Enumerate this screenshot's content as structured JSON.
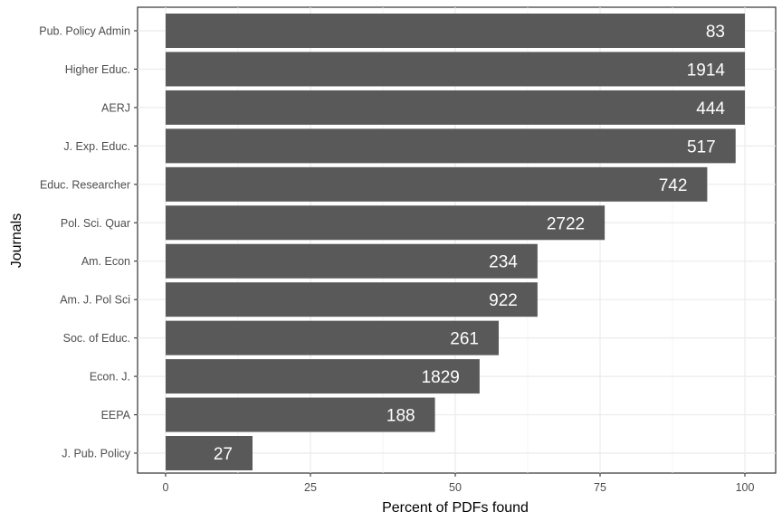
{
  "chart_data": {
    "type": "bar",
    "orientation": "horizontal",
    "categories": [
      "Pub. Policy Admin",
      "Higher Educ.",
      "AERJ",
      "J. Exp. Educ.",
      "Educ. Researcher",
      "Pol. Sci. Quar",
      "Am. Econ",
      "Am. J. Pol Sci",
      "Soc. of Educ.",
      "Econ. J.",
      "EEPA",
      "J. Pub. Policy"
    ],
    "values": [
      100,
      100,
      100,
      98.4,
      93.5,
      75.8,
      64.2,
      64.2,
      57.5,
      54.2,
      46.5,
      15
    ],
    "bar_labels": [
      "83",
      "1914",
      "444",
      "517",
      "742",
      "2722",
      "234",
      "922",
      "261",
      "1829",
      "188",
      "27"
    ],
    "xlabel": "Percent of PDFs found",
    "ylabel": "Journals",
    "xlim": [
      0,
      100
    ],
    "xticks": [
      "0",
      "25",
      "50",
      "75",
      "100"
    ],
    "bar_color": "#595959",
    "grid": true
  }
}
